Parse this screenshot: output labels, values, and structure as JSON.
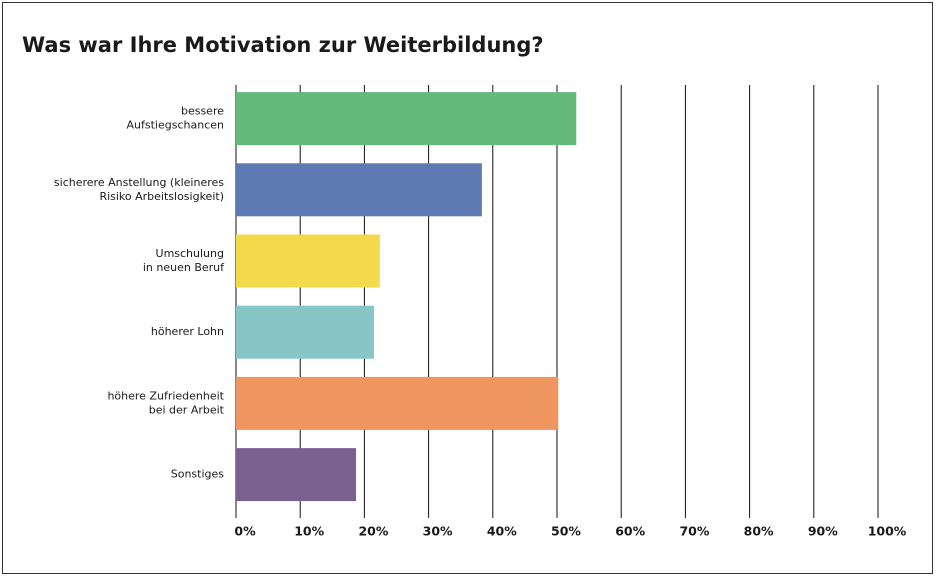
{
  "chart_data": {
    "type": "bar",
    "orientation": "horizontal",
    "title": "Was war Ihre Motivation zur Weiterbildung?",
    "categories": [
      "bessere\nAufstiegschancen",
      "sicherere Anstellung (kleineres\nRisiko Arbeitslosigkeit)",
      "Umschulung\nin neuen Beruf",
      "höherer Lohn",
      "höhere Zufriedenheit\nbei der Arbeit",
      "Sonstiges"
    ],
    "values": [
      53,
      38.3,
      22.4,
      21.5,
      50.2,
      18.7
    ],
    "colors": [
      "#63ba7a",
      "#5d7bb2",
      "#f2da4b",
      "#86c6c7",
      "#ef955f",
      "#7b6190"
    ],
    "xlim": [
      0,
      100
    ],
    "xticks": [
      {
        "value": 0,
        "label": "0%"
      },
      {
        "value": 10,
        "label": "10%"
      },
      {
        "value": 20,
        "label": "20%"
      },
      {
        "value": 30,
        "label": "30%"
      },
      {
        "value": 40,
        "label": "40%"
      },
      {
        "value": 50,
        "label": "50%"
      },
      {
        "value": 60,
        "label": "60%"
      },
      {
        "value": 70,
        "label": "70%"
      },
      {
        "value": 80,
        "label": "80%"
      },
      {
        "value": 90,
        "label": "90%"
      },
      {
        "value": 100,
        "label": "100%"
      }
    ],
    "grid": true
  }
}
